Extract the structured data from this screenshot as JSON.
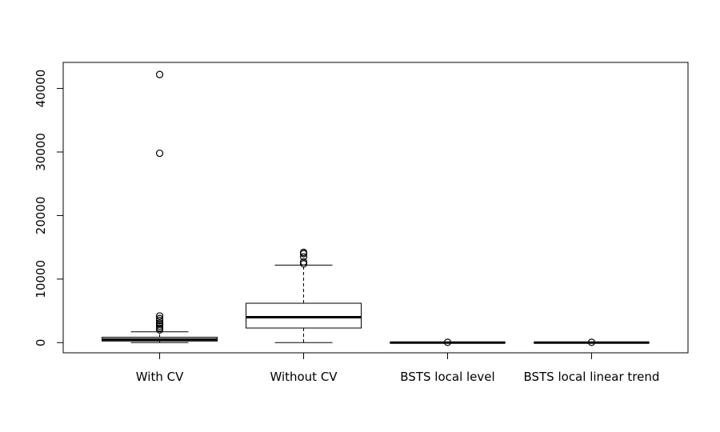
{
  "chart_data": {
    "type": "box",
    "title": "",
    "xlabel": "",
    "ylabel": "",
    "ylim": [
      -1600,
      44100
    ],
    "yticks": [
      0,
      10000,
      20000,
      30000,
      40000
    ],
    "ytick_labels": [
      "0",
      "10000",
      "20000",
      "30000",
      "40000"
    ],
    "grid": false,
    "categories": [
      "With CV",
      "Without CV",
      "BSTS local level",
      "BSTS local linear trend"
    ],
    "boxes": [
      {
        "whisker_low": 0,
        "q1": 250,
        "median": 500,
        "q3": 850,
        "whisker_high": 1700,
        "outliers": [
          2000,
          2300,
          2600,
          2900,
          3100,
          3500,
          3800,
          4200,
          29800,
          42200
        ]
      },
      {
        "whisker_low": 0,
        "q1": 2300,
        "median": 4000,
        "q3": 6200,
        "whisker_high": 12200,
        "outliers": [
          12400,
          12700,
          13500,
          14000,
          14200
        ]
      },
      {
        "whisker_low": 0,
        "q1": 0,
        "median": 0,
        "q3": 0,
        "whisker_high": 0,
        "outliers": [
          50
        ]
      },
      {
        "whisker_low": 0,
        "q1": 0,
        "median": 0,
        "q3": 0,
        "whisker_high": 0,
        "outliers": [
          50
        ]
      }
    ]
  }
}
